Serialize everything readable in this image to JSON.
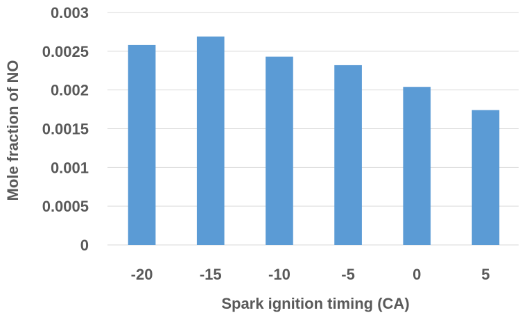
{
  "chart_data": {
    "type": "bar",
    "categories": [
      "-20",
      "-15",
      "-10",
      "-5",
      "0",
      "5"
    ],
    "values": [
      0.00258,
      0.00269,
      0.00243,
      0.00232,
      0.00204,
      0.00174
    ],
    "xlabel": "Spark ignition timing (CA)",
    "ylabel": "Mole fraction of NO",
    "ylim": [
      0,
      0.003
    ],
    "yticks": [
      "0",
      "0.0005",
      "0.001",
      "0.0015",
      "0.002",
      "0.0025",
      "0.003"
    ],
    "grid": true,
    "bar_color": "#5b9bd5"
  }
}
